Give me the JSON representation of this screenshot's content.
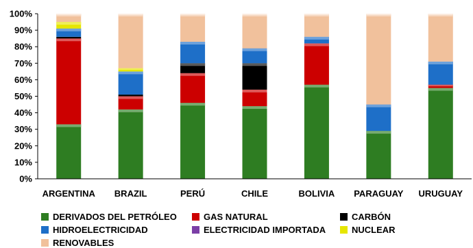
{
  "chart_data": {
    "type": "bar",
    "stacked": true,
    "categories": [
      "ARGENTINA",
      "BRAZIL",
      "PERÚ",
      "CHILE",
      "BOLIVIA",
      "PARAGUAY",
      "URUGUAY"
    ],
    "series": [
      {
        "name": "DERIVADOS DEL PETRÓLEO",
        "color": "#2e7d22",
        "values": [
          33,
          42,
          46,
          44,
          57,
          29,
          55
        ]
      },
      {
        "name": "GAS NATURAL",
        "color": "#cc0000",
        "values": [
          52,
          8,
          18,
          10,
          25,
          0,
          2
        ]
      },
      {
        "name": "CARBÓN",
        "color": "#000000",
        "values": [
          1,
          1,
          6,
          16,
          0,
          0,
          0
        ]
      },
      {
        "name": "HIDROELECTRICIDAD",
        "color": "#1e6fc8",
        "values": [
          5,
          14,
          13,
          9,
          4,
          16,
          14
        ]
      },
      {
        "name": "ELECTRICIDAD IMPORTADA",
        "color": "#7b3fa6",
        "values": [
          0,
          0,
          0,
          0,
          0,
          0,
          0
        ]
      },
      {
        "name": "NUCLEAR",
        "color": "#e6e600",
        "values": [
          4,
          2,
          0,
          0,
          0,
          0,
          0
        ]
      },
      {
        "name": "RENOVABLES",
        "color": "#f1c19c",
        "values": [
          5,
          33,
          17,
          21,
          14,
          55,
          29
        ]
      }
    ],
    "ylim": [
      0,
      100
    ],
    "yticks": [
      "0%",
      "10%",
      "20%",
      "30%",
      "40%",
      "50%",
      "60%",
      "70%",
      "80%",
      "90%",
      "100%"
    ],
    "grid": false,
    "legend_position": "bottom",
    "title": "",
    "xlabel": "",
    "ylabel": ""
  }
}
